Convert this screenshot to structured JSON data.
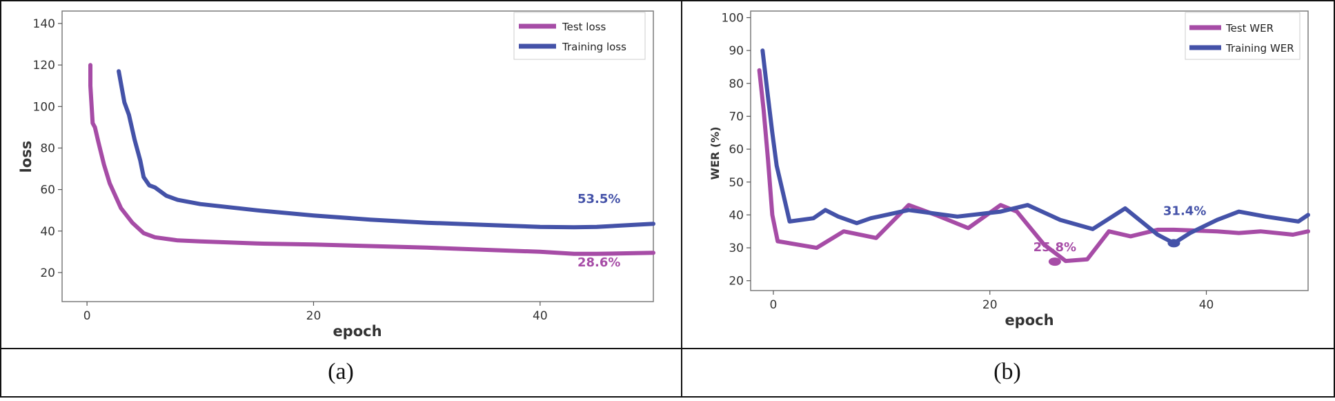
{
  "chart_data": [
    {
      "id": "a",
      "type": "line",
      "title": "",
      "xlabel": "epoch",
      "ylabel": "loss",
      "xlim": [
        -2.2,
        50
      ],
      "ylim": [
        6,
        146
      ],
      "xticks": [
        0,
        20,
        40
      ],
      "yticks": [
        20,
        40,
        60,
        80,
        100,
        120,
        140
      ],
      "legend": [
        "Test loss",
        "Training loss"
      ],
      "legend_position": "top-right",
      "series": [
        {
          "name": "Test loss",
          "color": "#a64ca6",
          "x": [
            0.3,
            0.3,
            0.5,
            0.7,
            1,
            1.5,
            2,
            3,
            4,
            5,
            6,
            8,
            10,
            15,
            20,
            30,
            40,
            43,
            45,
            50
          ],
          "y": [
            120,
            110,
            92,
            90,
            83,
            72,
            63,
            51,
            44,
            39,
            37,
            35.5,
            35,
            34,
            33.5,
            32,
            30,
            29,
            29,
            29.5
          ]
        },
        {
          "name": "Training loss",
          "color": "#4452a8",
          "x": [
            2.8,
            3.3,
            3.7,
            4.2,
            4.7,
            5,
            5.5,
            6,
            7,
            8,
            10,
            15,
            20,
            25,
            30,
            35,
            40,
            43,
            45,
            50
          ],
          "y": [
            117,
            102,
            96,
            84,
            74,
            66,
            62,
            61,
            57,
            55,
            53,
            50,
            47.5,
            45.5,
            44,
            43,
            42,
            41.8,
            42,
            43.5
          ]
        }
      ],
      "annotations": [
        {
          "text": "53.5%",
          "x": 45.2,
          "y": 53.5,
          "color": "#4452a8"
        },
        {
          "text": "28.6%",
          "x": 45.2,
          "y": 23,
          "color": "#a64ca6"
        }
      ]
    },
    {
      "id": "b",
      "type": "line",
      "title": "",
      "xlabel": "epoch",
      "ylabel": "WER (%)",
      "xlim": [
        -2.1,
        49.4
      ],
      "ylim": [
        17,
        102
      ],
      "xticks": [
        0,
        20,
        40
      ],
      "yticks": [
        20,
        30,
        40,
        50,
        60,
        70,
        80,
        90,
        100
      ],
      "legend": [
        "Test WER",
        "Training WER"
      ],
      "legend_position": "top-right",
      "series": [
        {
          "name": "Test WER",
          "color": "#a64ca6",
          "x": [
            -1.3,
            -1.1,
            -0.9,
            -0.5,
            -0.1,
            0.4,
            4,
            6.5,
            9.5,
            12.5,
            15,
            18,
            21,
            22.5,
            25,
            27,
            29,
            31,
            33,
            35.5,
            37,
            38.5,
            41,
            43,
            45,
            48,
            49.4
          ],
          "y": [
            84,
            78,
            72,
            57,
            40,
            32,
            30,
            35,
            33,
            43,
            40,
            36,
            43,
            41,
            31,
            26,
            26.5,
            35,
            33.5,
            35.5,
            35.5,
            35.3,
            35,
            34.5,
            35,
            34,
            35
          ]
        },
        {
          "name": "Training WER",
          "color": "#4452a8",
          "x": [
            -1,
            -0.5,
            -0.1,
            0.3,
            0.8,
            1.5,
            3.7,
            4.8,
            6,
            7.7,
            9,
            12.5,
            17,
            21,
            23.5,
            26.5,
            29.5,
            32.5,
            35.5,
            37,
            38.5,
            41,
            43,
            45.5,
            48.5,
            49.4
          ],
          "y": [
            90,
            76,
            65,
            55,
            48,
            38,
            39,
            41.5,
            39.5,
            37.5,
            39,
            41.5,
            39.5,
            41,
            43,
            38.5,
            35.7,
            42,
            34,
            31.4,
            34.5,
            38.5,
            41,
            39.5,
            38,
            40
          ]
        }
      ],
      "markers": [
        {
          "series": "Test WER",
          "x": 26,
          "y": 25.8
        },
        {
          "series": "Training WER",
          "x": 37,
          "y": 31.4
        }
      ],
      "annotations": [
        {
          "text": "25.8%",
          "x": 26,
          "y": 29,
          "color": "#a64ca6"
        },
        {
          "text": "31.4%",
          "x": 38,
          "y": 40,
          "color": "#4452a8"
        }
      ]
    }
  ],
  "captions": {
    "a": "(a)",
    "b": "(b)"
  }
}
